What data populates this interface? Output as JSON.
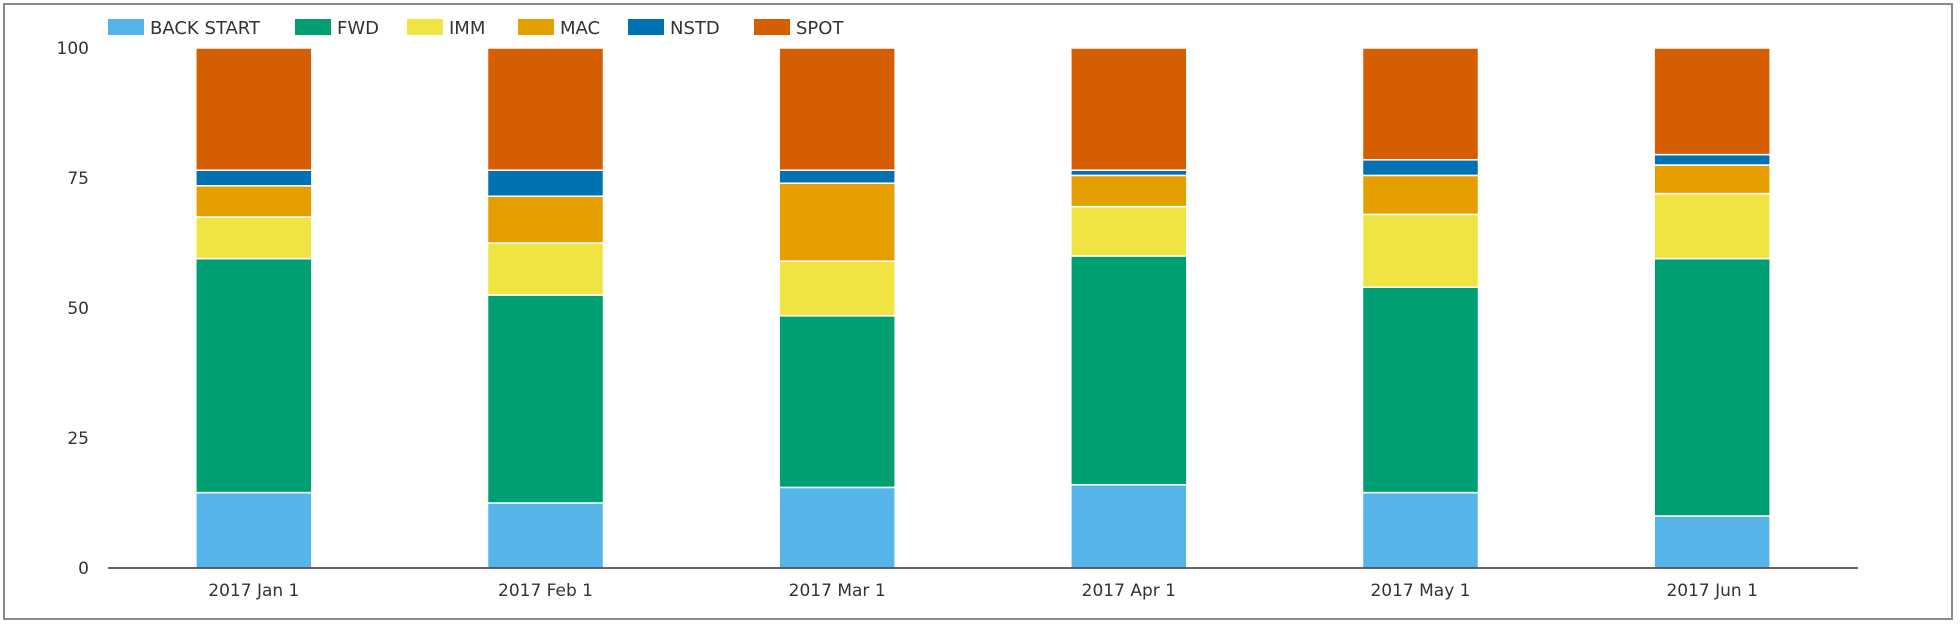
{
  "chart_data": {
    "type": "bar",
    "stacked": true,
    "categories": [
      "2017 Jan 1",
      "2017 Feb 1",
      "2017 Mar 1",
      "2017 Apr 1",
      "2017 May 1",
      "2017 Jun 1"
    ],
    "series": [
      {
        "name": "BACK START",
        "color": "#56B4E9",
        "values": [
          14.5,
          12.5,
          15.5,
          16,
          14.5,
          10
        ]
      },
      {
        "name": "FWD",
        "color": "#009E73",
        "values": [
          45,
          40,
          33,
          44,
          39.5,
          49.5
        ]
      },
      {
        "name": "IMM",
        "color": "#F0E442",
        "values": [
          8,
          10,
          10.5,
          9.5,
          14,
          12.5
        ]
      },
      {
        "name": "MAC",
        "color": "#E69F00",
        "values": [
          6,
          9,
          15,
          6,
          7.5,
          5.5
        ]
      },
      {
        "name": "NSTD",
        "color": "#0072B2",
        "values": [
          3,
          5,
          2.5,
          1,
          3,
          2
        ]
      },
      {
        "name": "SPOT",
        "color": "#D55E00",
        "values": [
          23.5,
          23.5,
          23.5,
          23.5,
          21.5,
          20.5
        ]
      }
    ],
    "ylim": [
      0,
      100
    ],
    "yticks": [
      "0",
      "25",
      "50",
      "75",
      "100"
    ],
    "grid": false,
    "legend_position": "top-left"
  }
}
